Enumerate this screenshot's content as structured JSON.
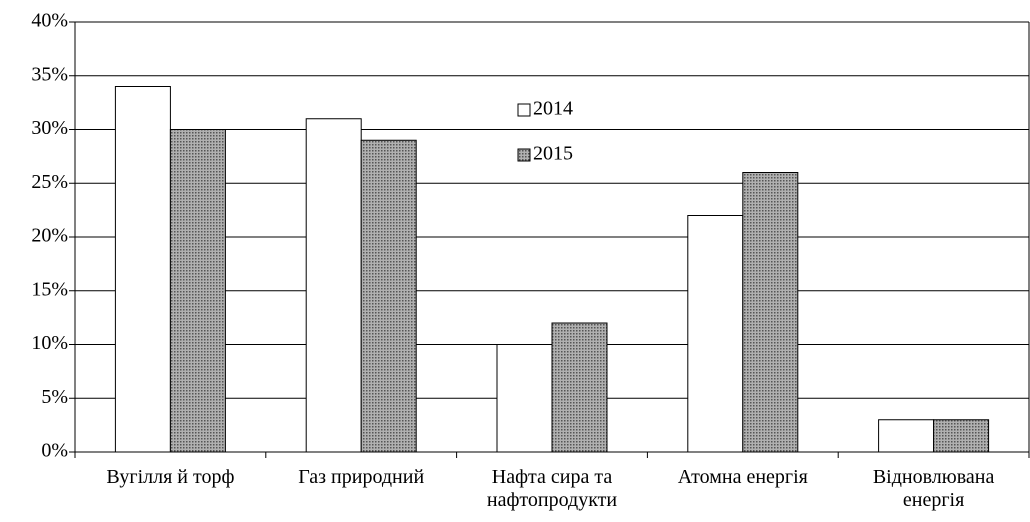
{
  "chart_data": {
    "type": "bar",
    "categories": [
      "Вугілля й торф",
      "Газ природний",
      "Нафта сира та нафтопродукти",
      "Атомна енергія",
      "Відновлювана енергія"
    ],
    "series": [
      {
        "name": "2014",
        "color": "#ffffff",
        "values": [
          34,
          31,
          10,
          22,
          3
        ]
      },
      {
        "name": "2015",
        "color": "#8a8a8a",
        "values": [
          30,
          29,
          12,
          26,
          3
        ]
      }
    ],
    "ylim": [
      0,
      40
    ],
    "yticks": [
      {
        "value": 0,
        "label": "0%"
      },
      {
        "value": 5,
        "label": "5%"
      },
      {
        "value": 10,
        "label": "10%"
      },
      {
        "value": 15,
        "label": "15%"
      },
      {
        "value": 20,
        "label": "20%"
      },
      {
        "value": 25,
        "label": "25%"
      },
      {
        "value": 30,
        "label": "30%"
      },
      {
        "value": 35,
        "label": "35%"
      },
      {
        "value": 40,
        "label": "40%"
      }
    ],
    "grid": true
  }
}
